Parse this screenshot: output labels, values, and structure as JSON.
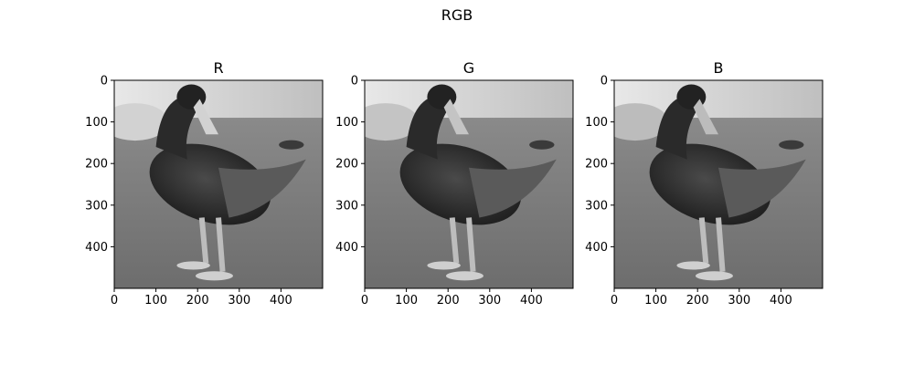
{
  "figure": {
    "title": "RGB"
  },
  "chart_data": [
    {
      "type": "image",
      "title": "R",
      "channel": "red",
      "subject": "duck (grayscale channel)",
      "x_ticks": [
        0,
        100,
        200,
        300,
        400
      ],
      "y_ticks": [
        0,
        100,
        200,
        300,
        400
      ],
      "xlim": [
        0,
        500
      ],
      "ylim": [
        500,
        0
      ],
      "grid": false
    },
    {
      "type": "image",
      "title": "G",
      "channel": "green",
      "subject": "duck (grayscale channel)",
      "x_ticks": [
        0,
        100,
        200,
        300,
        400
      ],
      "y_ticks": [
        0,
        100,
        200,
        300,
        400
      ],
      "xlim": [
        0,
        500
      ],
      "ylim": [
        500,
        0
      ],
      "grid": false
    },
    {
      "type": "image",
      "title": "B",
      "channel": "blue",
      "subject": "duck (grayscale channel)",
      "x_ticks": [
        0,
        100,
        200,
        300,
        400
      ],
      "y_ticks": [
        0,
        100,
        200,
        300,
        400
      ],
      "xlim": [
        0,
        500
      ],
      "ylim": [
        500,
        0
      ],
      "grid": false
    }
  ],
  "channel_tint": {
    "red": "#d2d2d2",
    "green": "#c4c4c4",
    "blue": "#bcbcbc"
  }
}
